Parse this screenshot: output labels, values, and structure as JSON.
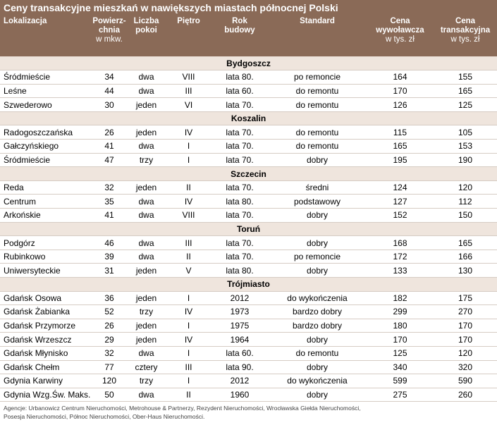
{
  "title": "Ceny transakcyjne mieszkań w nawiększych miastach północnej Polski",
  "columns": [
    [
      "Lokalizacja"
    ],
    [
      "Powierz-",
      "chnia",
      "w mkw."
    ],
    [
      "Liczba",
      "pokoi"
    ],
    [
      "Piętro"
    ],
    [
      "Rok",
      "budowy"
    ],
    [
      "Standard"
    ],
    [
      "Cena",
      "wywoławcza",
      "w tys. zł"
    ],
    [
      "Cena",
      "transakcyjna",
      "w tys. zł"
    ]
  ],
  "groups": [
    {
      "name": "Bydgoszcz",
      "rows": [
        [
          "Śródmieście",
          "34",
          "dwa",
          "VIII",
          "lata 80.",
          "po remoncie",
          "164",
          "155"
        ],
        [
          "Leśne",
          "44",
          "dwa",
          "III",
          "lata 60.",
          "do remontu",
          "170",
          "165"
        ],
        [
          "Szwederowo",
          "30",
          "jeden",
          "VI",
          "lata 70.",
          "do remontu",
          "126",
          "125"
        ]
      ]
    },
    {
      "name": "Koszalin",
      "rows": [
        [
          "Radogoszczańska",
          "26",
          "jeden",
          "IV",
          "lata 70.",
          "do remontu",
          "115",
          "105"
        ],
        [
          "Gałczyńskiego",
          "41",
          "dwa",
          "I",
          "lata 70.",
          "do remontu",
          "165",
          "153"
        ],
        [
          "Śródmieście",
          "47",
          "trzy",
          "I",
          "lata 70.",
          "dobry",
          "195",
          "190"
        ]
      ]
    },
    {
      "name": "Szczecin",
      "rows": [
        [
          "Reda",
          "32",
          "jeden",
          "II",
          "lata 70.",
          "średni",
          "124",
          "120"
        ],
        [
          "Centrum",
          "35",
          "dwa",
          "IV",
          "lata 80.",
          "podstawowy",
          "127",
          "112"
        ],
        [
          "Arkońskie",
          "41",
          "dwa",
          "VIII",
          "lata 70.",
          "dobry",
          "152",
          "150"
        ]
      ]
    },
    {
      "name": "Toruń",
      "rows": [
        [
          "Podgórz",
          "46",
          "dwa",
          "III",
          "lata 70.",
          "dobry",
          "168",
          "165"
        ],
        [
          "Rubinkowo",
          "39",
          "dwa",
          "II",
          "lata 70.",
          "po remoncie",
          "172",
          "166"
        ],
        [
          "Uniwersyteckie",
          "31",
          "jeden",
          "V",
          "lata 80.",
          "dobry",
          "133",
          "130"
        ]
      ]
    },
    {
      "name": "Trójmiasto",
      "rows": [
        [
          "Gdańsk Osowa",
          "36",
          "jeden",
          "I",
          "2012",
          "do wykończenia",
          "182",
          "175"
        ],
        [
          "Gdańsk Żabianka",
          "52",
          "trzy",
          "IV",
          "1973",
          "bardzo dobry",
          "299",
          "270"
        ],
        [
          "Gdańsk Przymorze",
          "26",
          "jeden",
          "I",
          "1975",
          "bardzo dobry",
          "180",
          "170"
        ],
        [
          "Gdańsk Wrzeszcz",
          "29",
          "jeden",
          "IV",
          "1964",
          "dobry",
          "170",
          "170"
        ],
        [
          "Gdańsk Młynisko",
          "32",
          "dwa",
          "I",
          "lata 60.",
          "do remontu",
          "125",
          "120"
        ],
        [
          "Gdańsk Chełm",
          "77",
          "cztery",
          "III",
          "lata 90.",
          "dobry",
          "340",
          "320"
        ],
        [
          "Gdynia Karwiny",
          "120",
          "trzy",
          "I",
          "2012",
          "do wykończenia",
          "599",
          "590"
        ],
        [
          "Gdynia Wzg.Św. Maks.",
          "50",
          "dwa",
          "II",
          "1960",
          "dobry",
          "275",
          "260"
        ]
      ]
    }
  ],
  "footer": [
    "Agencje: Urbanowicz Centrum Nieruchomości, Metrohouse & Partnerzy, Rezydent Nieruchomości, Wrocławska Giełda Nieruchomości,",
    "Posesja Nieruchomości, Północ Nieruchomości, Ober-Haus Nieruchomości."
  ]
}
